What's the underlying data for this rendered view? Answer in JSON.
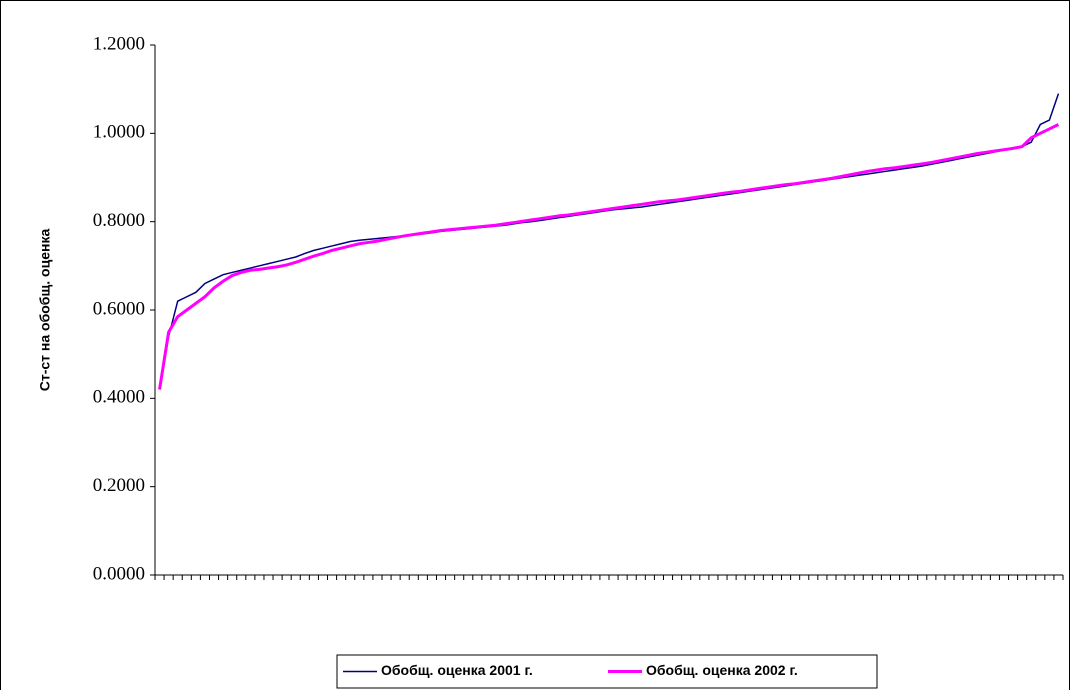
{
  "chart_data": {
    "type": "line",
    "ylabel": "Ст-ст на обобщ. оценка",
    "categories": [
      null,
      null,
      null,
      null,
      null,
      null,
      null,
      null,
      null,
      null,
      null,
      null,
      null,
      null,
      null,
      null,
      null,
      null,
      null,
      null,
      null,
      null,
      null,
      null,
      null,
      null,
      null,
      null,
      null,
      null,
      null,
      null,
      null,
      null,
      null,
      null,
      null,
      null,
      null,
      null,
      null,
      null,
      null,
      null,
      null,
      null,
      null,
      null,
      null,
      null,
      null,
      null,
      null,
      null,
      null,
      null,
      null,
      null,
      null,
      null,
      null,
      null,
      null,
      null,
      null,
      null,
      null,
      null,
      null,
      null,
      null,
      null,
      null,
      null,
      null,
      null,
      null,
      null,
      null,
      null,
      null,
      null,
      null,
      null,
      null,
      null,
      null,
      null,
      null,
      null,
      null,
      null,
      null,
      null,
      null,
      null,
      null,
      null,
      null,
      null
    ],
    "series": [
      {
        "name": "Обобщ. оценка 2001 г.",
        "color": "#000080",
        "values": [
          0.42,
          0.54,
          0.62,
          0.63,
          0.64,
          0.66,
          0.67,
          0.68,
          0.685,
          0.69,
          0.695,
          0.7,
          0.705,
          0.71,
          0.715,
          0.72,
          0.728,
          0.735,
          0.74,
          0.745,
          0.75,
          0.755,
          0.758,
          0.76,
          0.762,
          0.764,
          0.766,
          0.768,
          0.77,
          0.772,
          0.775,
          0.778,
          0.78,
          0.782,
          0.784,
          0.786,
          0.788,
          0.79,
          0.792,
          0.795,
          0.798,
          0.8,
          0.803,
          0.806,
          0.809,
          0.812,
          0.815,
          0.818,
          0.821,
          0.824,
          0.827,
          0.829,
          0.831,
          0.833,
          0.836,
          0.839,
          0.842,
          0.845,
          0.848,
          0.851,
          0.854,
          0.857,
          0.86,
          0.863,
          0.866,
          0.869,
          0.872,
          0.875,
          0.878,
          0.881,
          0.884,
          0.887,
          0.89,
          0.893,
          0.896,
          0.899,
          0.902,
          0.905,
          0.908,
          0.911,
          0.914,
          0.917,
          0.92,
          0.923,
          0.926,
          0.93,
          0.934,
          0.938,
          0.942,
          0.946,
          0.95,
          0.954,
          0.958,
          0.962,
          0.966,
          0.97,
          0.98,
          1.02,
          1.03,
          1.09
        ]
      },
      {
        "name": "Обобщ. оценка 2002 г.",
        "color": "#ff00ff",
        "values": [
          0.42,
          0.55,
          0.585,
          0.6,
          0.615,
          0.63,
          0.65,
          0.665,
          0.678,
          0.685,
          0.69,
          0.692,
          0.695,
          0.698,
          0.702,
          0.708,
          0.715,
          0.722,
          0.728,
          0.735,
          0.74,
          0.745,
          0.75,
          0.753,
          0.756,
          0.76,
          0.764,
          0.768,
          0.771,
          0.774,
          0.777,
          0.78,
          0.782,
          0.784,
          0.786,
          0.788,
          0.79,
          0.792,
          0.795,
          0.798,
          0.801,
          0.804,
          0.807,
          0.81,
          0.813,
          0.815,
          0.818,
          0.821,
          0.824,
          0.827,
          0.83,
          0.833,
          0.836,
          0.839,
          0.842,
          0.845,
          0.847,
          0.849,
          0.852,
          0.855,
          0.858,
          0.861,
          0.864,
          0.867,
          0.869,
          0.872,
          0.875,
          0.878,
          0.881,
          0.884,
          0.886,
          0.889,
          0.892,
          0.895,
          0.898,
          0.902,
          0.906,
          0.91,
          0.914,
          0.917,
          0.92,
          0.922,
          0.925,
          0.928,
          0.931,
          0.934,
          0.938,
          0.942,
          0.946,
          0.95,
          0.954,
          0.957,
          0.96,
          0.963,
          0.966,
          0.97,
          0.99,
          1.0,
          1.01,
          1.02
        ]
      }
    ],
    "ylim": [
      0,
      1.2
    ],
    "yticks": [
      {
        "value": 0,
        "label": "0.0000"
      },
      {
        "value": 0.2,
        "label": "0.2000"
      },
      {
        "value": 0.4,
        "label": "0.4000"
      },
      {
        "value": 0.6,
        "label": "0.6000"
      },
      {
        "value": 0.8,
        "label": "0.8000"
      },
      {
        "value": 1.0,
        "label": "1.0000"
      },
      {
        "value": 1.2,
        "label": "1.2000"
      }
    ],
    "legend": "bottom"
  }
}
